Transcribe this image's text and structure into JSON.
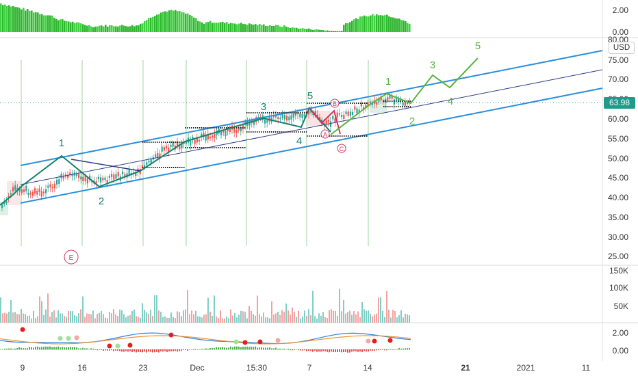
{
  "currency_badge": "USD",
  "last_price_badge": "63.98",
  "price_scale": [
    "80.00",
    "75.00",
    "70.00",
    "65.00",
    "60.00",
    "55.00",
    "50.00",
    "45.00",
    "40.00",
    "35.00",
    "30.00",
    "25.00"
  ],
  "top_indicator_scale": [
    "2.00",
    "0.00"
  ],
  "volume_scale": [
    "150K",
    "100K",
    "50K"
  ],
  "oscillator_scale": [
    "2.00",
    "0.00"
  ],
  "time_axis": [
    "9",
    "16",
    "23",
    "Dec",
    "15:30",
    "7",
    "14",
    "21",
    "2021",
    "11",
    "15:30"
  ],
  "wave_labels": {
    "impulse1": [
      "1",
      "2",
      "3",
      "4",
      "5"
    ],
    "correction": [
      "A",
      "B",
      "C"
    ],
    "event_marker": "E",
    "projection": [
      "1",
      "2",
      "3",
      "4",
      "5"
    ]
  },
  "colors": {
    "channel": "#2a8fdc",
    "wave_teal": "#11806a",
    "wave_red": "#d8315b",
    "wave_green": "#5ab43c",
    "navy": "#2b3a8c",
    "up_candle": "#26a69a",
    "down_candle": "#ef5350",
    "price_badge": "#1e9b8a",
    "histogram": "#3fd13f",
    "vertical_marker": "#9ed69e",
    "macd_line": "#2a7fe0",
    "signal_line": "#f0922b"
  }
}
